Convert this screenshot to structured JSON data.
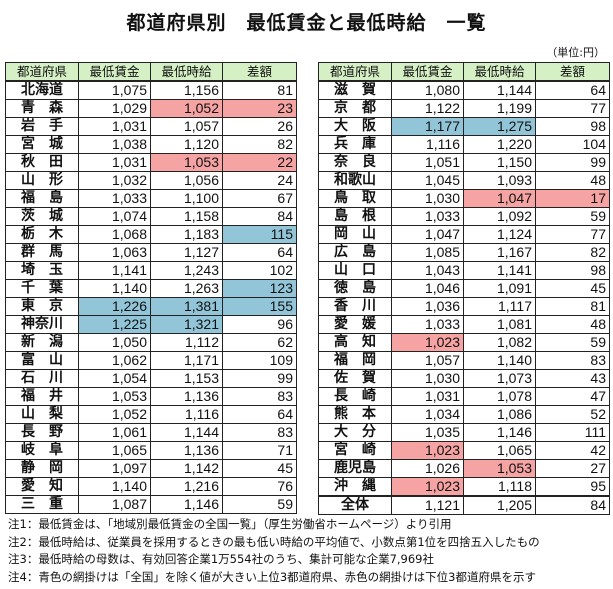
{
  "title": "都道府県別　最低賃金と最低時給　一覧",
  "unit": "（単位:円）",
  "headers": [
    "都道府県",
    "最低賃金",
    "最低時給",
    "差額"
  ],
  "colors": {
    "blue": "#92c5d8",
    "red": "#f5a3a3",
    "header": "#d6f0c6"
  },
  "left_rows": [
    {
      "name": "北海道",
      "wage": "1,075",
      "hourly": "1,156",
      "diff": "81"
    },
    {
      "name": "青　森",
      "wage": "1,029",
      "hourly": "1,052",
      "diff": "23",
      "hl": {
        "hourly": "red",
        "diff": "red"
      }
    },
    {
      "name": "岩　手",
      "wage": "1,031",
      "hourly": "1,057",
      "diff": "26"
    },
    {
      "name": "宮　城",
      "wage": "1,038",
      "hourly": "1,120",
      "diff": "82"
    },
    {
      "name": "秋　田",
      "wage": "1,031",
      "hourly": "1,053",
      "diff": "22",
      "hl": {
        "hourly": "red",
        "diff": "red"
      }
    },
    {
      "name": "山　形",
      "wage": "1,032",
      "hourly": "1,056",
      "diff": "24"
    },
    {
      "name": "福　島",
      "wage": "1,033",
      "hourly": "1,100",
      "diff": "67"
    },
    {
      "name": "茨　城",
      "wage": "1,074",
      "hourly": "1,158",
      "diff": "84"
    },
    {
      "name": "栃　木",
      "wage": "1,068",
      "hourly": "1,183",
      "diff": "115",
      "hl": {
        "diff": "blue"
      }
    },
    {
      "name": "群　馬",
      "wage": "1,063",
      "hourly": "1,127",
      "diff": "64"
    },
    {
      "name": "埼　玉",
      "wage": "1,141",
      "hourly": "1,243",
      "diff": "102"
    },
    {
      "name": "千　葉",
      "wage": "1,140",
      "hourly": "1,263",
      "diff": "123",
      "hl": {
        "diff": "blue"
      }
    },
    {
      "name": "東　京",
      "wage": "1,226",
      "hourly": "1,381",
      "diff": "155",
      "hl": {
        "wage": "blue",
        "hourly": "blue",
        "diff": "blue"
      }
    },
    {
      "name": "神奈川",
      "wage": "1,225",
      "hourly": "1,321",
      "diff": "96",
      "hl": {
        "wage": "blue",
        "hourly": "blue"
      }
    },
    {
      "name": "新　潟",
      "wage": "1,050",
      "hourly": "1,112",
      "diff": "62"
    },
    {
      "name": "富　山",
      "wage": "1,062",
      "hourly": "1,171",
      "diff": "109"
    },
    {
      "name": "石　川",
      "wage": "1,054",
      "hourly": "1,153",
      "diff": "99"
    },
    {
      "name": "福　井",
      "wage": "1,053",
      "hourly": "1,136",
      "diff": "83"
    },
    {
      "name": "山　梨",
      "wage": "1,052",
      "hourly": "1,116",
      "diff": "64"
    },
    {
      "name": "長　野",
      "wage": "1,061",
      "hourly": "1,144",
      "diff": "83"
    },
    {
      "name": "岐　阜",
      "wage": "1,065",
      "hourly": "1,136",
      "diff": "71"
    },
    {
      "name": "静　岡",
      "wage": "1,097",
      "hourly": "1,142",
      "diff": "45"
    },
    {
      "name": "愛　知",
      "wage": "1,140",
      "hourly": "1,216",
      "diff": "76"
    },
    {
      "name": "三　重",
      "wage": "1,087",
      "hourly": "1,146",
      "diff": "59"
    }
  ],
  "right_rows": [
    {
      "name": "滋　賀",
      "wage": "1,080",
      "hourly": "1,144",
      "diff": "64"
    },
    {
      "name": "京　都",
      "wage": "1,122",
      "hourly": "1,199",
      "diff": "77"
    },
    {
      "name": "大　阪",
      "wage": "1,177",
      "hourly": "1,275",
      "diff": "98",
      "hl": {
        "wage": "blue",
        "hourly": "blue"
      }
    },
    {
      "name": "兵　庫",
      "wage": "1,116",
      "hourly": "1,220",
      "diff": "104"
    },
    {
      "name": "奈　良",
      "wage": "1,051",
      "hourly": "1,150",
      "diff": "99"
    },
    {
      "name": "和歌山",
      "wage": "1,045",
      "hourly": "1,093",
      "diff": "48"
    },
    {
      "name": "鳥　取",
      "wage": "1,030",
      "hourly": "1,047",
      "diff": "17",
      "hl": {
        "hourly": "red",
        "diff": "red"
      }
    },
    {
      "name": "島　根",
      "wage": "1,033",
      "hourly": "1,092",
      "diff": "59"
    },
    {
      "name": "岡　山",
      "wage": "1,047",
      "hourly": "1,124",
      "diff": "77"
    },
    {
      "name": "広　島",
      "wage": "1,085",
      "hourly": "1,167",
      "diff": "82"
    },
    {
      "name": "山　口",
      "wage": "1,043",
      "hourly": "1,141",
      "diff": "98"
    },
    {
      "name": "徳　島",
      "wage": "1,046",
      "hourly": "1,091",
      "diff": "45"
    },
    {
      "name": "香　川",
      "wage": "1,036",
      "hourly": "1,117",
      "diff": "81"
    },
    {
      "name": "愛　媛",
      "wage": "1,033",
      "hourly": "1,081",
      "diff": "48"
    },
    {
      "name": "高　知",
      "wage": "1,023",
      "hourly": "1,082",
      "diff": "59",
      "hl": {
        "wage": "red"
      }
    },
    {
      "name": "福　岡",
      "wage": "1,057",
      "hourly": "1,140",
      "diff": "83"
    },
    {
      "name": "佐　賀",
      "wage": "1,030",
      "hourly": "1,073",
      "diff": "43"
    },
    {
      "name": "長　崎",
      "wage": "1,031",
      "hourly": "1,078",
      "diff": "47"
    },
    {
      "name": "熊　本",
      "wage": "1,034",
      "hourly": "1,086",
      "diff": "52"
    },
    {
      "name": "大　分",
      "wage": "1,035",
      "hourly": "1,146",
      "diff": "111"
    },
    {
      "name": "宮　崎",
      "wage": "1,023",
      "hourly": "1,065",
      "diff": "42",
      "hl": {
        "wage": "red"
      }
    },
    {
      "name": "鹿児島",
      "wage": "1,026",
      "hourly": "1,053",
      "diff": "27",
      "hl": {
        "hourly": "red"
      }
    },
    {
      "name": "沖　縄",
      "wage": "1,023",
      "hourly": "1,118",
      "diff": "95",
      "hl": {
        "wage": "red"
      }
    },
    {
      "name": "全体",
      "wage": "1,121",
      "hourly": "1,205",
      "diff": "84",
      "total": true
    }
  ],
  "notes": [
    "注1：最低賃金は、「地域別最低賃金の全国一覧」（厚生労働省ホームページ）より引用",
    "注2：最低時給は、従業員を採用するときの最も低い時給の平均値で、小数点第1位を四捨五入したもの",
    "注3：最低時給の母数は、有効回答企業1万554社のうち、集計可能な企業7,969社",
    "注4：青色の網掛けは「全国」を除く値が大きい上位3都道府県、赤色の網掛けは下位3都道府県を示す"
  ]
}
